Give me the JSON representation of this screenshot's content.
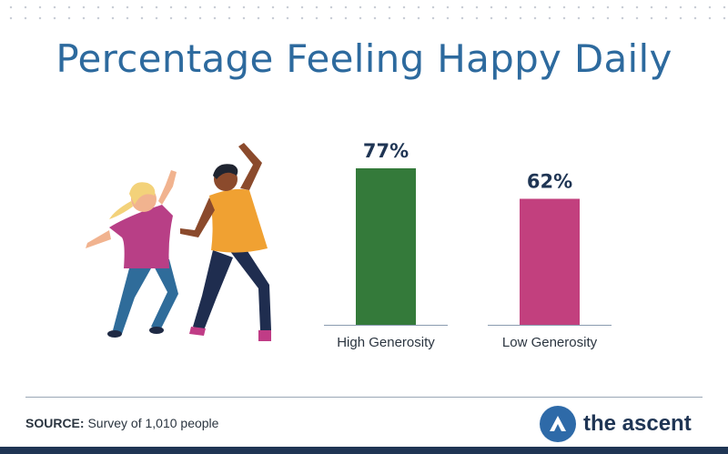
{
  "chart_data": {
    "type": "bar",
    "title": "Percentage Feeling Happy Daily",
    "categories": [
      "High Generosity",
      "Low Generosity"
    ],
    "values": [
      77,
      62
    ],
    "value_labels": [
      "77%",
      "62%"
    ],
    "colors": [
      "#347a3a",
      "#c2407e"
    ],
    "ylim": [
      0,
      100
    ],
    "grid": false,
    "legend": "none"
  },
  "footer": {
    "source_label": "SOURCE:",
    "source_text": "Survey of 1,010 people",
    "brand": "the ascent"
  },
  "illustration": {
    "icon": "dancing-people-icon"
  },
  "colors": {
    "title": "#2d6a9e",
    "brand_blue": "#2e6aa8",
    "navy": "#1f3554"
  }
}
